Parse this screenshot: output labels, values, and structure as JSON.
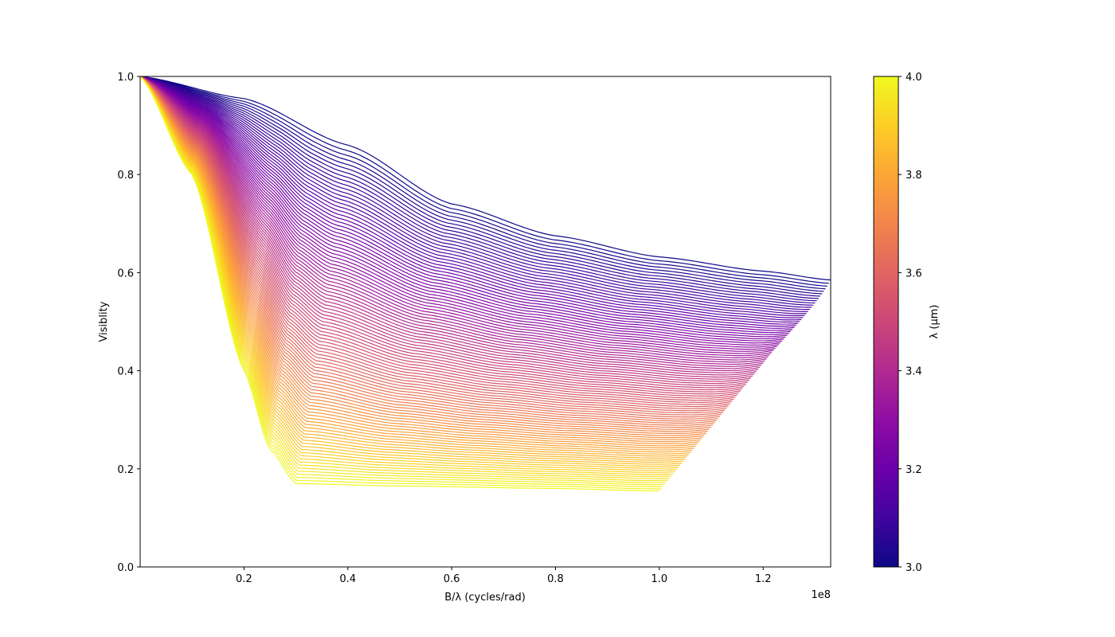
{
  "chart_data": {
    "type": "line",
    "title": "",
    "xlabel": "B/λ (cycles/rad)",
    "ylabel": "Visiblity",
    "x_offset_text": "1e8",
    "xlim": [
      0,
      133000000
    ],
    "ylim": [
      0.0,
      1.0
    ],
    "grid": false,
    "x_ticks": [
      {
        "value": 20000000,
        "label": "0.2"
      },
      {
        "value": 40000000,
        "label": "0.4"
      },
      {
        "value": 60000000,
        "label": "0.6"
      },
      {
        "value": 80000000,
        "label": "0.8"
      },
      {
        "value": 100000000,
        "label": "1.0"
      },
      {
        "value": 120000000,
        "label": "1.2"
      }
    ],
    "y_ticks": [
      {
        "value": 0.0,
        "label": "0.0"
      },
      {
        "value": 0.2,
        "label": "0.2"
      },
      {
        "value": 0.4,
        "label": "0.4"
      },
      {
        "value": 0.6,
        "label": "0.6"
      },
      {
        "value": 0.8,
        "label": "0.8"
      },
      {
        "value": 1.0,
        "label": "1.0"
      }
    ],
    "series_family": {
      "count": 100,
      "colormap": "plasma",
      "wavelength_range_um": [
        3.0,
        4.0
      ],
      "x_range_at_min_wavelength": [
        0,
        133000000
      ],
      "x_range_at_max_wavelength": [
        0,
        100000000
      ],
      "converge_point": [
        133000000,
        0.585
      ],
      "min_wavelength_curve": [
        [
          0,
          1.0
        ],
        [
          20000000,
          0.955
        ],
        [
          40000000,
          0.86
        ],
        [
          60000000,
          0.74
        ],
        [
          80000000,
          0.675
        ],
        [
          100000000,
          0.632
        ],
        [
          120000000,
          0.603
        ],
        [
          133000000,
          0.585
        ]
      ],
      "max_wavelength_curve": [
        [
          0,
          1.0
        ],
        [
          10000000,
          0.8
        ],
        [
          20000000,
          0.4
        ],
        [
          25000000,
          0.24
        ],
        [
          30000000,
          0.17
        ],
        [
          50000000,
          0.165
        ],
        [
          80000000,
          0.16
        ],
        [
          100000000,
          0.155
        ]
      ]
    },
    "colorbar": {
      "label": "λ (μm)",
      "min": 3.0,
      "max": 4.0,
      "ticks": [
        {
          "value": 3.0,
          "label": "3.0"
        },
        {
          "value": 3.2,
          "label": "3.2"
        },
        {
          "value": 3.4,
          "label": "3.4"
        },
        {
          "value": 3.6,
          "label": "3.6"
        },
        {
          "value": 3.8,
          "label": "3.8"
        },
        {
          "value": 4.0,
          "label": "4.0"
        }
      ],
      "colormap_stops": [
        "#0d0887",
        "#41049d",
        "#6a00a8",
        "#8f0da4",
        "#b12a90",
        "#cc4778",
        "#e16462",
        "#f2844b",
        "#fca636",
        "#fcce25",
        "#f0f921"
      ]
    }
  }
}
